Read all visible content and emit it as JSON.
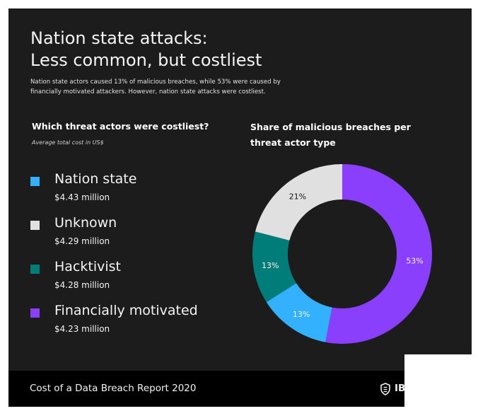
{
  "title_lines": [
    "Nation state attacks:",
    "Less common, but costliest"
  ],
  "subtitle_lines": [
    "Nation state actors caused 13% of malicious breaches, while 53% were caused by",
    "financially motivated attackers. However, nation state attacks were costliest."
  ],
  "left_panel": {
    "heading": "Which threat actors were costliest?",
    "note": "Average total cost in US$",
    "items": [
      {
        "label": "Nation state",
        "value": "$4.43 million",
        "color": "#33b1ff"
      },
      {
        "label": "Unknown",
        "value": "$4.29 million",
        "color": "#e0e0e0"
      },
      {
        "label": "Hacktivist",
        "value": "$4.28 million",
        "color": "#007d79"
      },
      {
        "label": "Financially motivated",
        "value": "$4.23 million",
        "color": "#8a3ffc"
      }
    ]
  },
  "right_panel": {
    "heading_lines": [
      "Share of malicious breaches per",
      "threat actor type"
    ]
  },
  "chart_data": {
    "type": "pie",
    "donut": true,
    "title": "Share of malicious breaches per threat actor type",
    "slices": [
      {
        "name": "Financially motivated",
        "value": 53,
        "label": "53%",
        "color": "#8a3ffc",
        "label_color": "#f4f4f4"
      },
      {
        "name": "Nation state",
        "value": 13,
        "label": "13%",
        "color": "#33b1ff",
        "label_color": "#f4f4f4"
      },
      {
        "name": "Hacktivist",
        "value": 13,
        "label": "13%",
        "color": "#007d79",
        "label_color": "#f4f4f4"
      },
      {
        "name": "Unknown",
        "value": 21,
        "label": "21%",
        "color": "#e0e0e0",
        "label_color": "#161616"
      }
    ]
  },
  "footer": {
    "text": "Cost of a Data Breach Report 2020",
    "brand": "IB",
    "brand_icon": "shield-icon"
  }
}
